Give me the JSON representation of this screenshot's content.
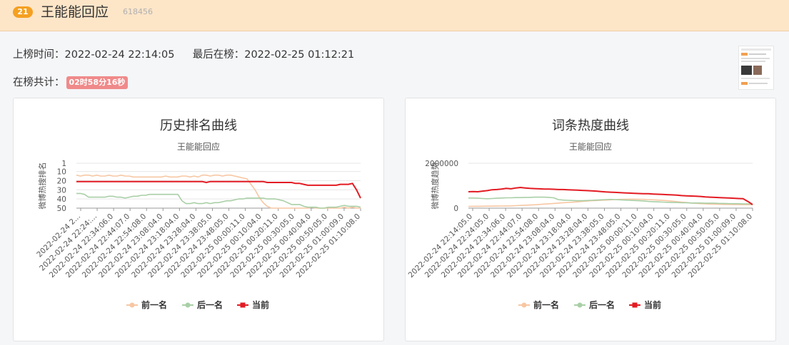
{
  "header": {
    "rank": "21",
    "title": "王能能回应",
    "id": "618456"
  },
  "info": {
    "on_board_label": "上榜时间：",
    "on_board_time": "2022-02-24 22:14:05",
    "last_label": "最后在榜：",
    "last_time": "2022-02-25 01:12:21",
    "total_label": "在榜共计：",
    "total_duration": "02时58分16秒"
  },
  "thumbnail_icon": "weibo-post-screenshot-thumbnail",
  "chart_data": [
    {
      "type": "line",
      "title": "历史排名曲线",
      "subtitle": "王能能回应",
      "ylabel": "微博热搜排名",
      "y_inverse": true,
      "ylim": [
        1,
        50
      ],
      "yticks": [
        "1",
        "10",
        "20",
        "30",
        "40",
        "50"
      ],
      "yticks_values": [
        1,
        10,
        20,
        30,
        40,
        50
      ],
      "xticks": [
        "2022-02-24 2...",
        "2022-02-24 22:24:...",
        "2022-02-24 22:34:06.0",
        "2022-02-24 22:44:07.0",
        "2022-02-24 22:54:08.0",
        "2022-02-24 23:08:04.0",
        "2022-02-24 23:18:04.0",
        "2022-02-24 23:28:04.0",
        "2022-02-24 23:38:05.0",
        "2022-02-24 23:48:05.0",
        "2022-02-25 00:00:11.0",
        "2022-02-25 00:10:04.0",
        "2022-02-25 00:20:11.0",
        "2022-02-25 00:30:05.0",
        "2022-02-25 00:40:04.0",
        "2022-02-25 00:50:05.0",
        "2022-02-25 01:00:09.0",
        "2022-02-25 01:10:08.0"
      ],
      "grid": true,
      "legend": "bottom-center",
      "series": [
        {
          "name": "前一名",
          "color": "#f7c7a3",
          "values": [
            14,
            15,
            14,
            14,
            15,
            14,
            15,
            15,
            14,
            15,
            15,
            14,
            15,
            15,
            16,
            16,
            16,
            16,
            16,
            16,
            16,
            16,
            15,
            16,
            16,
            16,
            15,
            15,
            16,
            15,
            16,
            14,
            14,
            15,
            14,
            14,
            15,
            14,
            14,
            15,
            16,
            17,
            18,
            24,
            30,
            38,
            44,
            48,
            50,
            50,
            50,
            50,
            50,
            50,
            50,
            50,
            50,
            50,
            49,
            50,
            50,
            50,
            50,
            50,
            50,
            50,
            49,
            50,
            49,
            50,
            50
          ]
        },
        {
          "name": "后一名",
          "color": "#a9cfa6",
          "values": [
            34,
            34,
            35,
            38,
            38,
            38,
            38,
            38,
            37,
            37,
            38,
            38,
            39,
            38,
            37,
            37,
            36,
            36,
            35,
            35,
            35,
            35,
            35,
            35,
            35,
            35,
            42,
            45,
            45,
            44,
            45,
            45,
            44,
            45,
            44,
            44,
            43,
            42,
            42,
            41,
            40,
            40,
            39,
            39,
            39,
            39,
            39,
            40,
            40,
            40,
            41,
            42,
            44,
            46,
            46,
            46,
            48,
            49,
            49,
            49,
            50,
            50,
            49,
            49,
            49,
            48,
            47,
            48,
            48,
            48,
            49
          ]
        },
        {
          "name": "当前",
          "color": "#e31b23",
          "values": [
            21,
            21,
            21,
            21,
            21,
            21,
            21,
            21,
            21,
            21,
            21,
            21,
            21,
            21,
            21,
            21,
            21,
            21,
            21,
            21,
            21,
            21,
            21,
            21,
            21,
            21,
            21,
            21,
            21,
            21,
            21,
            21,
            22,
            21,
            21,
            21,
            21,
            21,
            21,
            21,
            21,
            21,
            21,
            21,
            21,
            21,
            21,
            22,
            22,
            22,
            22,
            22,
            22,
            22,
            23,
            23,
            24,
            25,
            25,
            25,
            25,
            25,
            25,
            25,
            25,
            24,
            24,
            24,
            23,
            30,
            39
          ]
        }
      ]
    },
    {
      "type": "line",
      "title": "词条热度曲线",
      "subtitle": "王能能回应",
      "ylabel": "微博热度趋势",
      "ylim": [
        0,
        2000000
      ],
      "yticks": [
        "2000000",
        "0"
      ],
      "yticks_values": [
        2000000,
        0
      ],
      "xticks": [
        "2022-02-24 22:14:05.0",
        "2022-02-24 22:24:05.0",
        "2022-02-24 22:34:06.0",
        "2022-02-24 22:44:07.0",
        "2022-02-24 22:54:08.0",
        "2022-02-24 23:08:04.0",
        "2022-02-24 23:18:04.0",
        "2022-02-24 23:28:04.0",
        "2022-02-24 23:38:05.0",
        "2022-02-24 23:48:05.0",
        "2022-02-25 00:00:11.0",
        "2022-02-25 00:10:04.0",
        "2022-02-25 00:20:11.0",
        "2022-02-25 00:30:05.0",
        "2022-02-25 00:40:04.0",
        "2022-02-25 00:50:05.0",
        "2022-02-25 01:00:09.0",
        "2022-02-25 01:10:08.0"
      ],
      "grid": true,
      "legend": "bottom-center",
      "series": [
        {
          "name": "前一名",
          "color": "#f7c7a3",
          "values": [
            80000,
            82000,
            84000,
            86000,
            88000,
            90000,
            92000,
            95000,
            98000,
            100000,
            110000,
            120000,
            130000,
            140000,
            150000,
            165000,
            180000,
            195000,
            210000,
            225000,
            240000,
            250000,
            265000,
            280000,
            300000,
            315000,
            330000,
            340000,
            350000,
            360000,
            370000,
            380000,
            390000,
            395000,
            400000,
            400000,
            395000,
            390000,
            380000,
            370000,
            360000,
            345000,
            330000,
            310000,
            290000,
            270000,
            250000,
            230000,
            215000,
            200000,
            190000,
            180000,
            175000,
            170000,
            165000,
            165000,
            160000,
            160000,
            155000,
            155000,
            150000
          ]
        },
        {
          "name": "后一名",
          "color": "#a9cfa6",
          "values": [
            450000,
            450000,
            440000,
            430000,
            420000,
            430000,
            440000,
            450000,
            460000,
            460000,
            470000,
            470000,
            480000,
            480000,
            490000,
            490000,
            490000,
            480000,
            460000,
            380000,
            360000,
            350000,
            340000,
            330000,
            330000,
            340000,
            350000,
            360000,
            370000,
            380000,
            390000,
            380000,
            370000,
            360000,
            350000,
            340000,
            330000,
            320000,
            300000,
            290000,
            280000,
            270000,
            260000,
            250000,
            250000,
            240000,
            240000,
            230000,
            230000,
            230000,
            220000,
            220000,
            220000,
            210000,
            210000,
            200000,
            200000,
            200000,
            190000,
            190000,
            180000
          ]
        },
        {
          "name": "当前",
          "color": "#e31b23",
          "values": [
            730000,
            740000,
            730000,
            760000,
            780000,
            820000,
            830000,
            850000,
            880000,
            860000,
            900000,
            920000,
            900000,
            880000,
            870000,
            860000,
            850000,
            850000,
            840000,
            830000,
            830000,
            820000,
            810000,
            800000,
            790000,
            780000,
            770000,
            760000,
            740000,
            720000,
            710000,
            700000,
            690000,
            680000,
            670000,
            660000,
            650000,
            640000,
            640000,
            630000,
            620000,
            610000,
            600000,
            590000,
            580000,
            560000,
            550000,
            540000,
            530000,
            520000,
            500000,
            490000,
            480000,
            470000,
            460000,
            450000,
            440000,
            430000,
            420000,
            300000,
            160000
          ]
        }
      ]
    }
  ]
}
